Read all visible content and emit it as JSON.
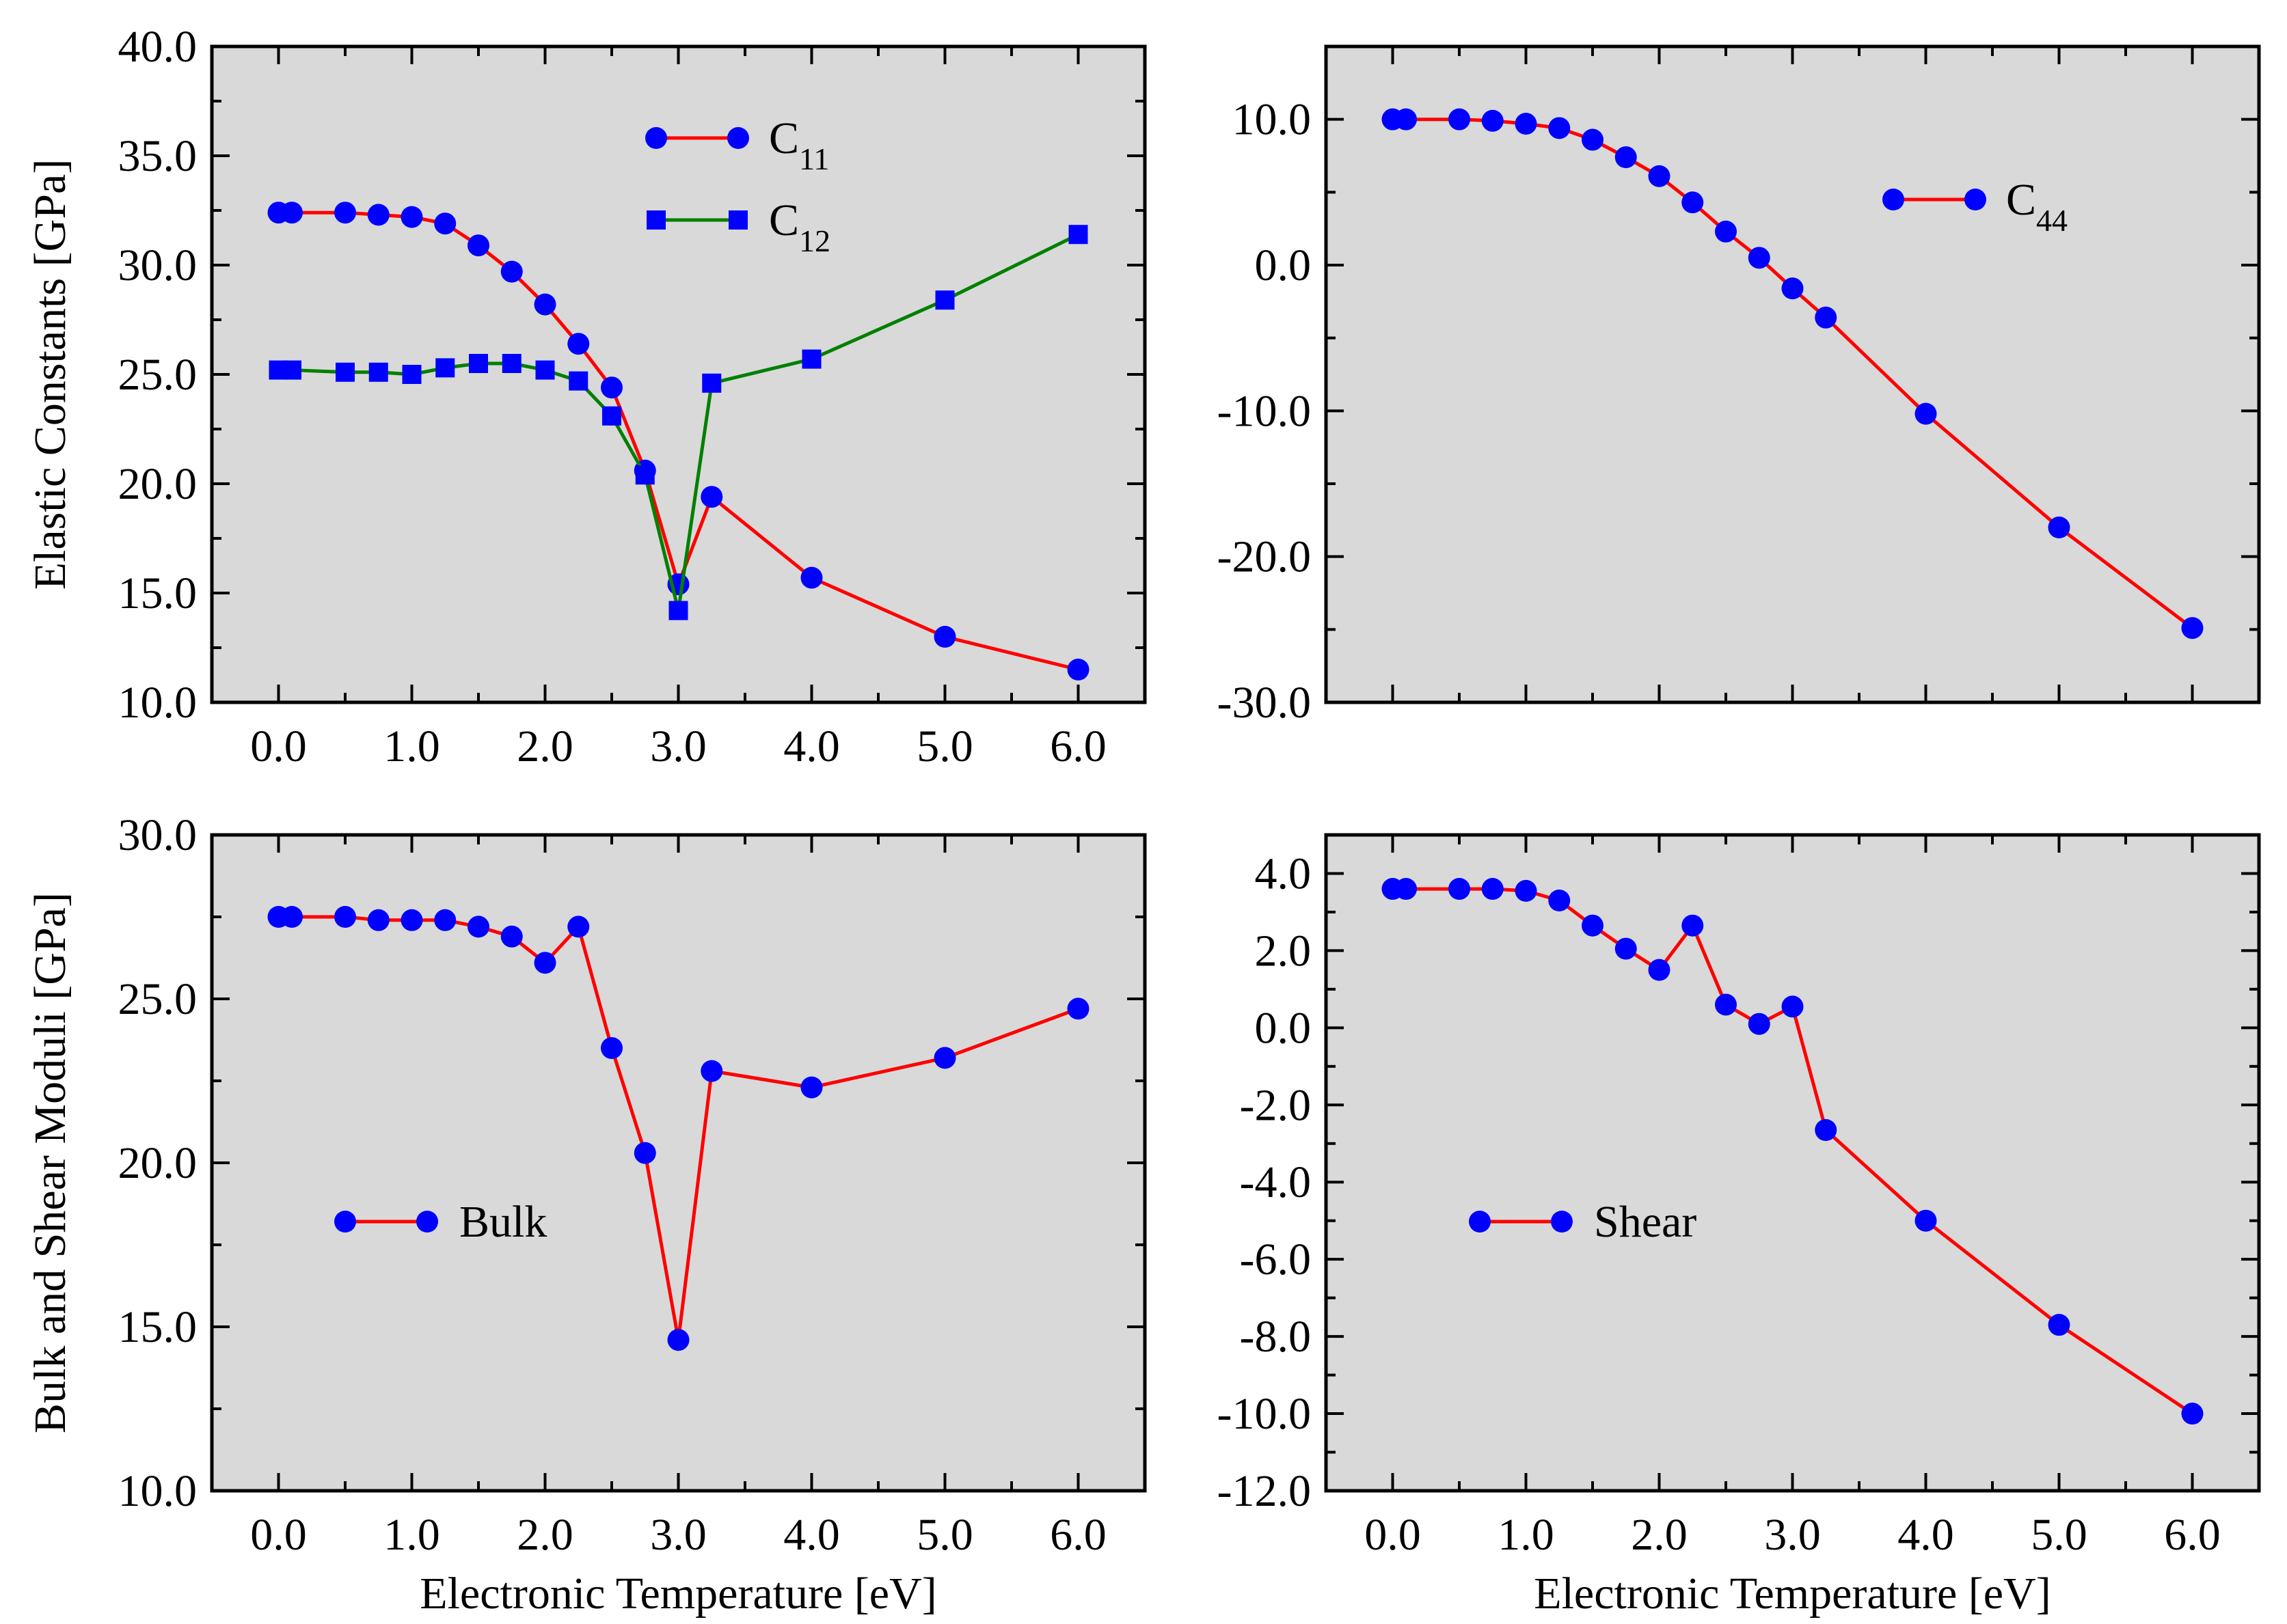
{
  "colors": {
    "plot_background": "#d9d9d9",
    "axis": "#000000",
    "red": "#ff0000",
    "green": "#008000",
    "blue": "#0000ff"
  },
  "chart_data": [
    {
      "id": "elastic-c11-c12",
      "type": "line",
      "ylabel": "Elastic Constants [GPa]",
      "xlabel": "",
      "xlim": [
        -0.5,
        6.5
      ],
      "ylim": [
        10,
        40
      ],
      "xticks": [
        0,
        1,
        2,
        3,
        4,
        5,
        6
      ],
      "xtick_labels": [
        "0.0",
        "1.0",
        "2.0",
        "3.0",
        "4.0",
        "5.0",
        "6.0"
      ],
      "yticks": [
        10,
        15,
        20,
        25,
        30,
        35,
        40
      ],
      "ytick_labels": [
        "10.0",
        "15.0",
        "20.0",
        "25.0",
        "30.0",
        "35.0",
        "40.0"
      ],
      "legend_position": "top-center",
      "series": [
        {
          "name": "C11",
          "label_main": "C",
          "label_sub": "11",
          "line_color": "red",
          "marker": "circle",
          "x": [
            0,
            0.1,
            0.5,
            0.75,
            1.0,
            1.25,
            1.5,
            1.75,
            2.0,
            2.25,
            2.5,
            2.75,
            3.0,
            3.25,
            4.0,
            5.0,
            6.0
          ],
          "y": [
            32.4,
            32.4,
            32.4,
            32.3,
            32.2,
            31.9,
            30.9,
            29.7,
            28.2,
            26.4,
            24.4,
            20.6,
            15.4,
            19.4,
            15.7,
            13.0,
            11.5
          ]
        },
        {
          "name": "C12",
          "label_main": "C",
          "label_sub": "12",
          "line_color": "green",
          "marker": "square",
          "x": [
            0,
            0.1,
            0.5,
            0.75,
            1.0,
            1.25,
            1.5,
            1.75,
            2.0,
            2.25,
            2.5,
            2.75,
            3.0,
            3.25,
            4.0,
            5.0,
            6.0
          ],
          "y": [
            25.2,
            25.2,
            25.1,
            25.1,
            25.0,
            25.3,
            25.5,
            25.5,
            25.2,
            24.7,
            23.1,
            20.4,
            14.2,
            24.6,
            25.7,
            28.4,
            31.4
          ]
        }
      ]
    },
    {
      "id": "elastic-c44",
      "type": "line",
      "ylabel": "",
      "xlabel": "",
      "xlim": [
        -0.5,
        6.5
      ],
      "ylim": [
        -30,
        15
      ],
      "xticks": [
        0,
        1,
        2,
        3,
        4,
        5,
        6
      ],
      "xtick_labels": [],
      "yticks": [
        -30,
        -20,
        -10,
        0,
        10
      ],
      "ytick_labels": [
        "-30.0",
        "-20.0",
        "-10.0",
        "0.0",
        "10.0"
      ],
      "legend_position": "top-right",
      "series": [
        {
          "name": "C44",
          "label_main": "C",
          "label_sub": "44",
          "line_color": "red",
          "marker": "circle",
          "x": [
            0,
            0.1,
            0.5,
            0.75,
            1.0,
            1.25,
            1.5,
            1.75,
            2.0,
            2.25,
            2.5,
            2.75,
            3.0,
            3.25,
            4.0,
            5.0,
            6.0
          ],
          "y": [
            10.0,
            10.0,
            10.0,
            9.9,
            9.7,
            9.4,
            8.6,
            7.4,
            6.1,
            4.3,
            2.3,
            0.5,
            -1.6,
            -3.6,
            -10.2,
            -18.0,
            -24.9
          ]
        }
      ]
    },
    {
      "id": "bulk-modulus",
      "type": "line",
      "ylabel": "Bulk and Shear Moduli [GPa]",
      "xlabel": "Electronic Temperature [eV]",
      "xlim": [
        -0.5,
        6.5
      ],
      "ylim": [
        10,
        30
      ],
      "xticks": [
        0,
        1,
        2,
        3,
        4,
        5,
        6
      ],
      "xtick_labels": [
        "0.0",
        "1.0",
        "2.0",
        "3.0",
        "4.0",
        "5.0",
        "6.0"
      ],
      "yticks": [
        10,
        15,
        20,
        25,
        30
      ],
      "ytick_labels": [
        "10.0",
        "15.0",
        "20.0",
        "25.0",
        "30.0"
      ],
      "legend_position": "center-left",
      "series": [
        {
          "name": "Bulk",
          "label_main": "Bulk",
          "label_sub": "",
          "line_color": "red",
          "marker": "circle",
          "x": [
            0,
            0.1,
            0.5,
            0.75,
            1.0,
            1.25,
            1.5,
            1.75,
            2.0,
            2.25,
            2.5,
            2.75,
            3.0,
            3.25,
            4.0,
            5.0,
            6.0
          ],
          "y": [
            27.5,
            27.5,
            27.5,
            27.4,
            27.4,
            27.4,
            27.2,
            26.9,
            26.1,
            27.2,
            23.5,
            20.3,
            14.6,
            22.8,
            22.3,
            23.2,
            24.7
          ]
        }
      ]
    },
    {
      "id": "shear-modulus",
      "type": "line",
      "ylabel": "",
      "xlabel": "Electronic Temperature [eV]",
      "xlim": [
        -0.5,
        6.5
      ],
      "ylim": [
        -12,
        5
      ],
      "xticks": [
        0,
        1,
        2,
        3,
        4,
        5,
        6
      ],
      "xtick_labels": [
        "0.0",
        "1.0",
        "2.0",
        "3.0",
        "4.0",
        "5.0",
        "6.0"
      ],
      "yticks": [
        -12,
        -10,
        -8,
        -6,
        -4,
        -2,
        0,
        2,
        4
      ],
      "ytick_labels": [
        "-12.0",
        "-10.0",
        "-8.0",
        "-6.0",
        "-4.0",
        "-2.0",
        "0.0",
        "2.0",
        "4.0"
      ],
      "legend_position": "center-left",
      "series": [
        {
          "name": "Shear",
          "label_main": "Shear",
          "label_sub": "",
          "line_color": "red",
          "marker": "circle",
          "x": [
            0,
            0.1,
            0.5,
            0.75,
            1.0,
            1.25,
            1.5,
            1.75,
            2.0,
            2.25,
            2.5,
            2.75,
            3.0,
            3.25,
            4.0,
            5.0,
            6.0
          ],
          "y": [
            3.6,
            3.6,
            3.6,
            3.6,
            3.55,
            3.3,
            2.65,
            2.05,
            1.5,
            2.65,
            0.6,
            0.1,
            0.55,
            -2.65,
            -5.0,
            -7.7,
            -10.0
          ]
        }
      ]
    }
  ]
}
